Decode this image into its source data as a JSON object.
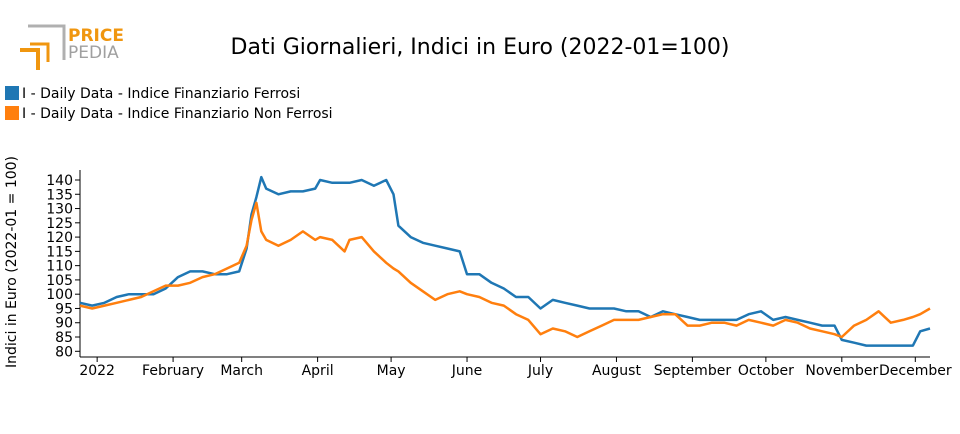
{
  "logo_text": [
    "PRICE",
    "PEDIA"
  ],
  "chart_data": {
    "type": "line",
    "title": "Dati Giornalieri, Indici in Euro (2022-01=100)",
    "y_label": "Indici in Euro (2022-01 = 100)",
    "x": [
      -7,
      -2,
      3,
      8,
      13,
      18,
      23,
      28,
      33,
      38,
      43,
      48,
      53,
      58,
      61,
      63,
      65,
      67,
      69,
      74,
      79,
      84,
      89,
      91,
      96,
      101,
      103,
      108,
      113,
      118,
      121,
      123,
      128,
      133,
      138,
      143,
      148,
      151,
      156,
      161,
      166,
      171,
      176,
      181,
      186,
      191,
      196,
      201,
      206,
      211,
      216,
      221,
      226,
      231,
      236,
      241,
      246,
      251,
      256,
      261,
      266,
      271,
      276,
      281,
      286,
      291,
      296,
      301,
      304,
      309,
      314,
      319,
      324,
      329,
      333,
      336,
      340
    ],
    "series": [
      {
        "name": "I - Daily Data - Indice Finanziario Ferrosi",
        "color": "#1f77b4",
        "values": [
          97,
          96,
          97,
          99,
          100,
          100,
          100,
          102,
          106,
          108,
          108,
          107,
          107,
          108,
          116,
          128,
          134,
          141,
          137,
          135,
          136,
          136,
          137,
          140,
          139,
          139,
          139,
          140,
          138,
          140,
          135,
          124,
          120,
          118,
          117,
          116,
          115,
          107,
          107,
          104,
          102,
          99,
          99,
          95,
          98,
          97,
          96,
          95,
          95,
          95,
          94,
          94,
          92,
          94,
          93,
          92,
          91,
          91,
          91,
          91,
          93,
          94,
          91,
          92,
          91,
          90,
          89,
          89,
          84,
          83,
          82,
          82,
          82,
          82,
          82,
          87,
          88
        ]
      },
      {
        "name": "I - Daily Data - Indice Finanziario Non Ferrosi",
        "color": "#ff7f0e",
        "values": [
          96,
          95,
          96,
          97,
          98,
          99,
          101,
          103,
          103,
          104,
          106,
          107,
          109,
          111,
          117,
          126,
          132,
          122,
          119,
          117,
          119,
          122,
          119,
          120,
          119,
          115,
          119,
          120,
          115,
          111,
          109,
          108,
          104,
          101,
          98,
          100,
          101,
          100,
          99,
          97,
          96,
          93,
          91,
          86,
          88,
          87,
          85,
          87,
          89,
          91,
          91,
          91,
          92,
          93,
          93,
          89,
          89,
          90,
          90,
          89,
          91,
          90,
          89,
          91,
          90,
          88,
          87,
          86,
          85,
          89,
          91,
          94,
          90,
          91,
          92,
          93,
          95
        ]
      }
    ],
    "xlim": [
      -7,
      340
    ],
    "xticks": [
      {
        "value": 0,
        "label": "2022"
      },
      {
        "value": 31,
        "label": "February"
      },
      {
        "value": 59,
        "label": "March"
      },
      {
        "value": 90,
        "label": "April"
      },
      {
        "value": 120,
        "label": "May"
      },
      {
        "value": 151,
        "label": "June"
      },
      {
        "value": 181,
        "label": "July"
      },
      {
        "value": 212,
        "label": "August"
      },
      {
        "value": 243,
        "label": "September"
      },
      {
        "value": 273,
        "label": "October"
      },
      {
        "value": 304,
        "label": "November"
      },
      {
        "value": 334,
        "label": "December"
      }
    ],
    "ylim": [
      78,
      143.5
    ],
    "yticks": [
      80,
      85,
      90,
      95,
      100,
      105,
      110,
      115,
      120,
      125,
      130,
      135,
      140
    ],
    "legend": "top-left"
  }
}
